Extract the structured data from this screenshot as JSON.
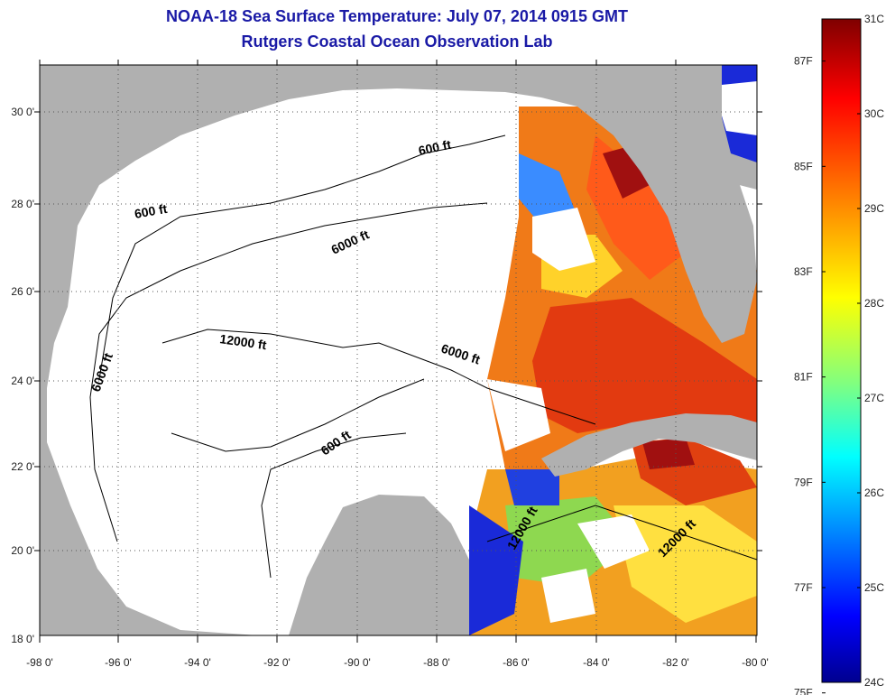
{
  "title": {
    "line1": "NOAA-18 Sea Surface Temperature:  July 07, 2014 0915 GMT",
    "line2": "Rutgers Coastal Ocean Observation Lab"
  },
  "colors": {
    "title": "#1a1aa6",
    "land": "#b0b0b0",
    "water_no_data": "#ffffff",
    "contour": "#000000"
  },
  "map": {
    "lon_ticks": [
      "-98 0'",
      "-96 0'",
      "-94 0'",
      "-92 0'",
      "-90 0'",
      "-88 0'",
      "-86 0'",
      "-84 0'",
      "-82 0'",
      "-80 0'"
    ],
    "lat_ticks": [
      "18 0'",
      "20 0'",
      "22 0'",
      "24 0'",
      "26 0'",
      "28 0'",
      "30 0'"
    ],
    "lon_range": [
      -98,
      -80
    ],
    "lat_range": [
      18,
      31
    ],
    "grid": "dotted",
    "contour_labels": [
      "600 ft",
      "600 ft",
      "600 ft",
      "6000 ft",
      "6000 ft",
      "6000 ft",
      "12000 ft",
      "12000 ft",
      "12000 ft"
    ]
  },
  "colorbar": {
    "celsius_labels": [
      "31C",
      "30C",
      "29C",
      "28C",
      "27C",
      "26C",
      "25C",
      "24C"
    ],
    "fahrenheit_labels": [
      "87F",
      "85F",
      "83F",
      "81F",
      "79F",
      "77F",
      "75F"
    ],
    "celsius_values": [
      31,
      30,
      29,
      28,
      27,
      26,
      25,
      24
    ],
    "fahrenheit_values": [
      87,
      85,
      83,
      81,
      79,
      77,
      75
    ],
    "gradient_colors": [
      "#7f0000",
      "#ff0000",
      "#ff8000",
      "#ffff00",
      "#80ff80",
      "#00ffff",
      "#0080ff",
      "#0000ff",
      "#00008f"
    ]
  }
}
